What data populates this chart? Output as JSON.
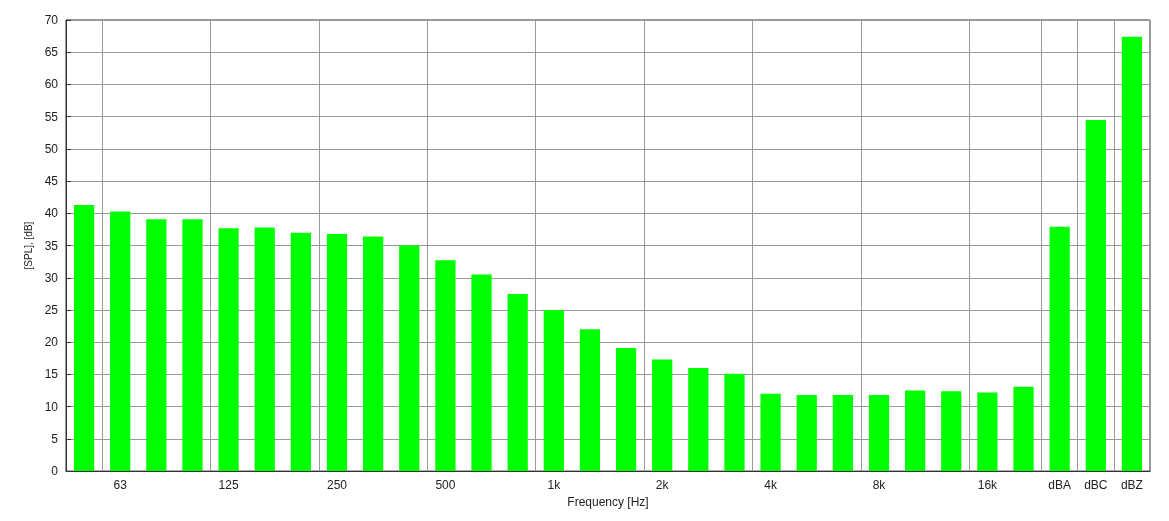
{
  "chart_data": {
    "type": "bar",
    "xlabel": "Frequency [Hz]",
    "ylabel": "[SPL], [dB]",
    "categories": [
      null,
      "63",
      null,
      null,
      "125",
      null,
      null,
      "250",
      null,
      null,
      "500",
      null,
      null,
      "1k",
      null,
      null,
      "2k",
      null,
      null,
      "4k",
      null,
      null,
      "8k",
      null,
      null,
      "16k",
      null,
      "dBA",
      "dBC",
      "dBZ"
    ],
    "values": [
      41.3,
      40.3,
      39.1,
      39.1,
      37.7,
      37.8,
      37.0,
      36.8,
      36.4,
      35.0,
      32.7,
      30.5,
      27.5,
      25.0,
      22.0,
      19.1,
      17.3,
      16.0,
      15.1,
      12.0,
      11.8,
      11.8,
      11.8,
      12.5,
      12.4,
      12.2,
      13.1,
      37.9,
      54.5,
      67.4
    ],
    "color": "#00ff00",
    "ylim": [
      0,
      70
    ],
    "yticks": [
      0,
      5,
      10,
      15,
      20,
      25,
      30,
      35,
      40,
      45,
      50,
      55,
      60,
      65,
      70
    ],
    "grid": true
  }
}
